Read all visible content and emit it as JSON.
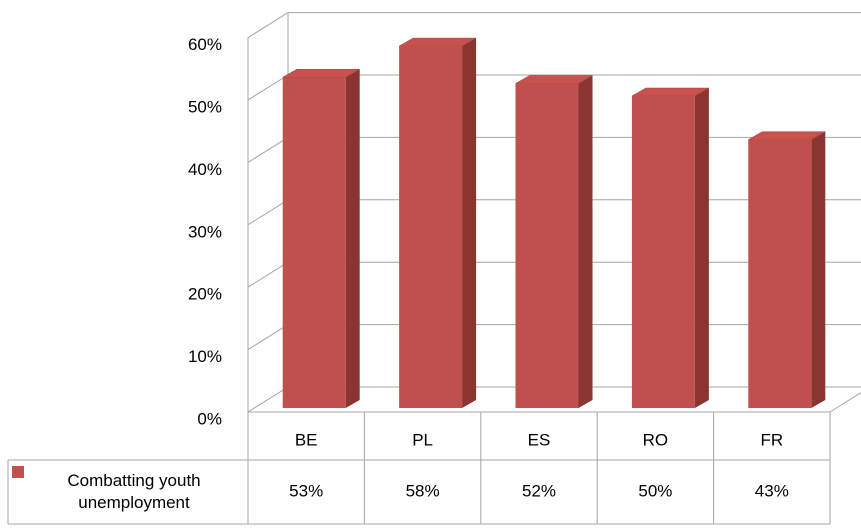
{
  "chart_data": {
    "type": "bar",
    "categories": [
      "BE",
      "PL",
      "ES",
      "RO",
      "FR"
    ],
    "series": [
      {
        "name": "Combatting youth unemployment",
        "color": "#c0504d",
        "values": [
          53,
          58,
          52,
          50,
          43
        ],
        "value_labels": [
          "53%",
          "58%",
          "52%",
          "50%",
          "43%"
        ]
      }
    ],
    "ylim": [
      0,
      60
    ],
    "yticks": [
      {
        "value": 0,
        "label": "0%"
      },
      {
        "value": 10,
        "label": "10%"
      },
      {
        "value": 20,
        "label": "20%"
      },
      {
        "value": 30,
        "label": "30%"
      },
      {
        "value": 40,
        "label": "40%"
      },
      {
        "value": 50,
        "label": "50%"
      },
      {
        "value": 60,
        "label": "60%"
      }
    ],
    "grid": true
  }
}
